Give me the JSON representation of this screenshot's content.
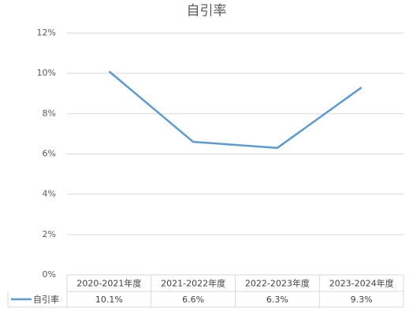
{
  "chart_data": {
    "type": "line",
    "title": "自引率",
    "categories": [
      "2020-2021年度",
      "2021-2022年度",
      "2022-2023年度",
      "2023-2024年度"
    ],
    "series": [
      {
        "name": "自引率",
        "color": "#5b9bd5",
        "values": [
          10.1,
          6.6,
          6.3,
          9.3
        ],
        "value_labels": [
          "10.1%",
          "6.6%",
          "6.3%",
          "9.3%"
        ]
      }
    ],
    "ylim": [
      0,
      12
    ],
    "yticks": [
      {
        "value": 0,
        "label": "0%"
      },
      {
        "value": 2,
        "label": "2%"
      },
      {
        "value": 4,
        "label": "4%"
      },
      {
        "value": 6,
        "label": "6%"
      },
      {
        "value": 8,
        "label": "8%"
      },
      {
        "value": 10,
        "label": "10%"
      },
      {
        "value": 12,
        "label": "12%"
      }
    ],
    "grid": true
  }
}
